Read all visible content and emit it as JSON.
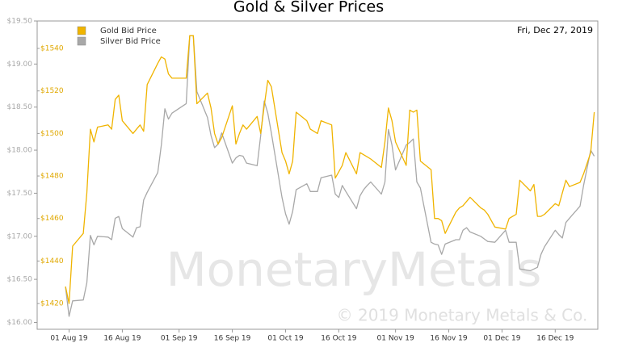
{
  "chart_data": {
    "type": "line",
    "title": "Gold & Silver Prices",
    "date_label": "Fri, Dec 27, 2019",
    "watermark": {
      "logo": "MonetaryMetals",
      "copyright": "© 2019 Monetary Metals & Co."
    },
    "legend": "upper left",
    "x": [
      "2019-07-31",
      "2019-08-01",
      "2019-08-02",
      "2019-08-05",
      "2019-08-06",
      "2019-08-07",
      "2019-08-08",
      "2019-08-09",
      "2019-08-12",
      "2019-08-13",
      "2019-08-14",
      "2019-08-15",
      "2019-08-16",
      "2019-08-19",
      "2019-08-20",
      "2019-08-21",
      "2019-08-22",
      "2019-08-23",
      "2019-08-26",
      "2019-08-27",
      "2019-08-28",
      "2019-08-29",
      "2019-08-30",
      "2019-09-03",
      "2019-09-04",
      "2019-09-05",
      "2019-09-06",
      "2019-09-09",
      "2019-09-10",
      "2019-09-11",
      "2019-09-12",
      "2019-09-13",
      "2019-09-16",
      "2019-09-17",
      "2019-09-18",
      "2019-09-19",
      "2019-09-20",
      "2019-09-23",
      "2019-09-24",
      "2019-09-25",
      "2019-09-26",
      "2019-09-27",
      "2019-09-30",
      "2019-10-01",
      "2019-10-02",
      "2019-10-03",
      "2019-10-04",
      "2019-10-07",
      "2019-10-08",
      "2019-10-09",
      "2019-10-10",
      "2019-10-11",
      "2019-10-14",
      "2019-10-15",
      "2019-10-16",
      "2019-10-17",
      "2019-10-18",
      "2019-10-21",
      "2019-10-22",
      "2019-10-23",
      "2019-10-24",
      "2019-10-25",
      "2019-10-28",
      "2019-10-29",
      "2019-10-30",
      "2019-10-31",
      "2019-11-01",
      "2019-11-04",
      "2019-11-05",
      "2019-11-06",
      "2019-11-07",
      "2019-11-08",
      "2019-11-11",
      "2019-11-12",
      "2019-11-13",
      "2019-11-14",
      "2019-11-15",
      "2019-11-18",
      "2019-11-19",
      "2019-11-20",
      "2019-11-21",
      "2019-11-22",
      "2019-11-25",
      "2019-11-26",
      "2019-11-27",
      "2019-11-29",
      "2019-12-02",
      "2019-12-03",
      "2019-12-04",
      "2019-12-05",
      "2019-12-06",
      "2019-12-09",
      "2019-12-10",
      "2019-12-11",
      "2019-12-12",
      "2019-12-13",
      "2019-12-16",
      "2019-12-17",
      "2019-12-18",
      "2019-12-19",
      "2019-12-20",
      "2019-12-23",
      "2019-12-24",
      "2019-12-26",
      "2019-12-27"
    ],
    "series": [
      {
        "name": "Gold Bid Price",
        "color": "#f0b400",
        "axis": "y2",
        "values": [
          1428,
          1420,
          1447,
          1453,
          1472,
          1502,
          1496,
          1503,
          1504,
          1502,
          1516,
          1518,
          1506,
          1500,
          1502,
          1504,
          1501,
          1523,
          1533,
          1536,
          1535,
          1528,
          1526,
          1526,
          1546,
          1546,
          1514,
          1519,
          1512,
          1500,
          1495,
          1498,
          1513,
          1495,
          1500,
          1504,
          1502,
          1508,
          1500,
          1513,
          1525,
          1522,
          1491,
          1487,
          1481,
          1487,
          1510,
          1506,
          1502,
          1501,
          1500,
          1506,
          1504,
          1479,
          1482,
          1485,
          1491,
          1481,
          1491,
          1490,
          1489,
          1488,
          1484,
          1496,
          1512,
          1506,
          1496,
          1485,
          1511,
          1510,
          1511,
          1487,
          1483,
          1460,
          1460,
          1459,
          1453,
          1463,
          1465,
          1466,
          1468,
          1470,
          1465,
          1464,
          1462,
          1456,
          1455,
          1460,
          1461,
          1462,
          1478,
          1473,
          1476,
          1461,
          1461,
          1462,
          1467,
          1466,
          1472,
          1478,
          1475,
          1477,
          1481,
          1491,
          1510
        ]
      },
      {
        "name": "Silver Bid Price",
        "color": "#a8a8a8",
        "values": [
          16.41,
          16.07,
          16.25,
          16.26,
          16.46,
          17.01,
          16.9,
          17.0,
          16.99,
          16.96,
          17.21,
          17.23,
          17.09,
          16.99,
          17.1,
          17.11,
          17.42,
          17.51,
          17.74,
          18.06,
          18.48,
          18.36,
          18.43,
          18.54,
          19.33,
          19.33,
          18.68,
          18.38,
          18.17,
          18.03,
          18.07,
          18.2,
          17.85,
          17.91,
          17.94,
          17.93,
          17.85,
          17.82,
          18.17,
          18.57,
          18.43,
          18.2,
          17.45,
          17.26,
          17.14,
          17.29,
          17.54,
          17.61,
          17.52,
          17.52,
          17.52,
          17.68,
          17.71,
          17.49,
          17.45,
          17.59,
          17.52,
          17.32,
          17.47,
          17.54,
          17.59,
          17.63,
          17.49,
          17.63,
          18.24,
          18.06,
          17.77,
          18.06,
          18.09,
          18.13,
          17.63,
          17.56,
          16.93,
          16.91,
          16.9,
          16.79,
          16.91,
          16.96,
          16.96,
          17.07,
          17.1,
          17.05,
          17.0,
          16.97,
          16.94,
          16.93,
          17.07,
          16.93,
          16.93,
          16.93,
          16.62,
          16.6,
          16.62,
          16.64,
          16.79,
          16.88,
          17.07,
          17.02,
          16.98,
          17.16,
          17.21,
          17.35,
          17.59,
          18.0,
          17.93
        ]
      }
    ],
    "xlim": [
      "2019-07-23",
      "2019-12-28"
    ],
    "xticks": [
      {
        "value": "2019-08-01",
        "label": "01 Aug 19"
      },
      {
        "value": "2019-08-16",
        "label": "16 Aug 19"
      },
      {
        "value": "2019-09-01",
        "label": "01 Sep 19"
      },
      {
        "value": "2019-09-16",
        "label": "16 Sep 19"
      },
      {
        "value": "2019-10-01",
        "label": "01 Oct 19"
      },
      {
        "value": "2019-10-16",
        "label": "16 Oct 19"
      },
      {
        "value": "2019-11-01",
        "label": "01 Nov 19"
      },
      {
        "value": "2019-11-16",
        "label": "16 Nov 19"
      },
      {
        "value": "2019-12-01",
        "label": "01 Dec 19"
      },
      {
        "value": "2019-12-16",
        "label": "16 Dec 19"
      }
    ],
    "ylim": [
      15.92,
      19.5
    ],
    "yticks": [
      {
        "value": 16,
        "label": "$16.00"
      },
      {
        "value": 16.5,
        "label": "$16.50"
      },
      {
        "value": 17,
        "label": "$17.00"
      },
      {
        "value": 17.5,
        "label": "$17.50"
      },
      {
        "value": 18,
        "label": "$18.00"
      },
      {
        "value": 18.5,
        "label": "$18.50"
      },
      {
        "value": 19,
        "label": "$19.00"
      },
      {
        "value": 19.5,
        "label": "$19.50"
      }
    ],
    "y2lim": [
      1407.9,
      1552.9
    ],
    "y2ticks": [
      {
        "value": 1420,
        "label": "$1420"
      },
      {
        "value": 1440,
        "label": "$1440"
      },
      {
        "value": 1460,
        "label": "$1460"
      },
      {
        "value": 1480,
        "label": "$1480"
      },
      {
        "value": 1500,
        "label": "$1500"
      },
      {
        "value": 1520,
        "label": "$1520"
      },
      {
        "value": 1540,
        "label": "$1540"
      }
    ]
  }
}
